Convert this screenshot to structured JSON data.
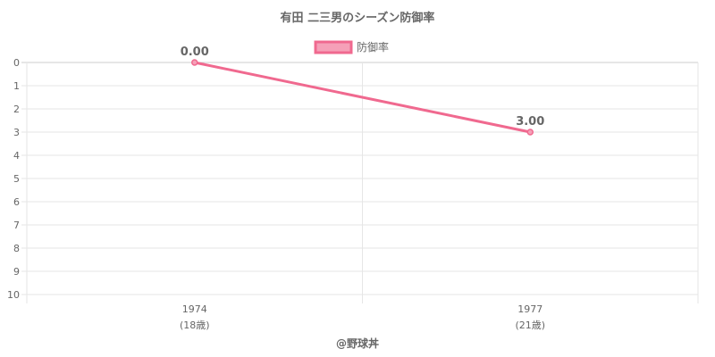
{
  "chart_data": {
    "type": "line",
    "title": "有田 二三男のシーズン防御率",
    "categories": [
      "1974",
      "1977"
    ],
    "category_sublabels": [
      "(18歳)",
      "(21歳)"
    ],
    "series": [
      {
        "name": "防御率",
        "values": [
          0.0,
          3.0
        ],
        "data_labels": [
          "0.00",
          "3.00"
        ],
        "color": "#f0698f"
      }
    ],
    "y_axis": {
      "min": 0,
      "max": 10,
      "step": 1,
      "reversed": true
    },
    "legend": "top-center",
    "grid": true
  },
  "credit": "@野球丼",
  "colors": {
    "line": "#f0698f",
    "point_fill": "#f5a0b8",
    "legend_fill": "#f5a0b8",
    "grid": "#e6e6e6",
    "text": "#666666"
  }
}
